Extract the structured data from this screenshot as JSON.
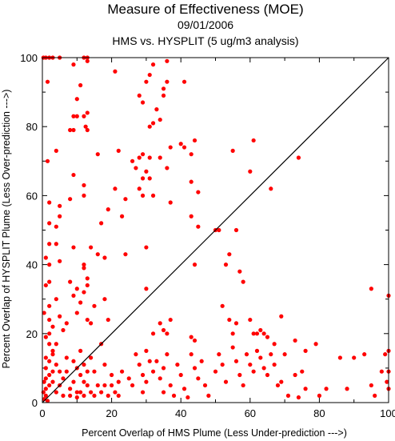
{
  "chart_data": {
    "type": "scatter",
    "title": "Measure of Effectiveness (MOE)",
    "date": "09/01/2006",
    "subtitle": "HMS vs. HYSPLIT  (5 ug/m3 analysis)",
    "xlabel": "Percent Overlap of HMS Plume (Less Under-prediction --->)",
    "ylabel": "Percent Overlap of HYSPLIT Plume (Less Over-prediction --->)",
    "xlim": [
      0,
      100
    ],
    "ylim": [
      0,
      100
    ],
    "x_ticks": [
      "0",
      "20",
      "40",
      "60",
      "80",
      "100"
    ],
    "y_ticks": [
      "0",
      "20",
      "40",
      "60",
      "80",
      "100"
    ],
    "reference_line": "1:1 diagonal",
    "marker_color": "#ff0000",
    "line_color": "#000000",
    "grid": false,
    "legend": "none",
    "points": [
      [
        0.3,
        100
      ],
      [
        1,
        100
      ],
      [
        2,
        100
      ],
      [
        3,
        100
      ],
      [
        5,
        100
      ],
      [
        12,
        100
      ],
      [
        13,
        100
      ],
      [
        1.5,
        93
      ],
      [
        9,
        98
      ],
      [
        11,
        92
      ],
      [
        13,
        99
      ],
      [
        21,
        96
      ],
      [
        30,
        93
      ],
      [
        31,
        95
      ],
      [
        32,
        98
      ],
      [
        35,
        91
      ],
      [
        36,
        99
      ],
      [
        41,
        93
      ],
      [
        10,
        88
      ],
      [
        12,
        83
      ],
      [
        12.5,
        80
      ],
      [
        13,
        84
      ],
      [
        13,
        79
      ],
      [
        9,
        79
      ],
      [
        10,
        83
      ],
      [
        28,
        89
      ],
      [
        29,
        87
      ],
      [
        31,
        80
      ],
      [
        32,
        81
      ],
      [
        34,
        82
      ],
      [
        35,
        89
      ],
      [
        33,
        85
      ],
      [
        36,
        93
      ],
      [
        1.5,
        70
      ],
      [
        4,
        73
      ],
      [
        8,
        79
      ],
      [
        9,
        83
      ],
      [
        16,
        72
      ],
      [
        22,
        73
      ],
      [
        26,
        70
      ],
      [
        27,
        68
      ],
      [
        28,
        71
      ],
      [
        29,
        72
      ],
      [
        29,
        65
      ],
      [
        31,
        71
      ],
      [
        30,
        67
      ],
      [
        34,
        71
      ],
      [
        37,
        74
      ],
      [
        36,
        68
      ],
      [
        43,
        72
      ],
      [
        44,
        76
      ],
      [
        45,
        61
      ],
      [
        40,
        75
      ],
      [
        41,
        74
      ],
      [
        2,
        58
      ],
      [
        2,
        52
      ],
      [
        5,
        57
      ],
      [
        5,
        54
      ],
      [
        8,
        59
      ],
      [
        9,
        66
      ],
      [
        12,
        60
      ],
      [
        12,
        63
      ],
      [
        17,
        52
      ],
      [
        19,
        56
      ],
      [
        21,
        62
      ],
      [
        23,
        54
      ],
      [
        24,
        59
      ],
      [
        28,
        62
      ],
      [
        29,
        60
      ],
      [
        31,
        65
      ],
      [
        32,
        60
      ],
      [
        37,
        58
      ],
      [
        43,
        64
      ],
      [
        43,
        54
      ],
      [
        45,
        51
      ],
      [
        50,
        50
      ],
      [
        51,
        50
      ],
      [
        55,
        73
      ],
      [
        60,
        67
      ],
      [
        61,
        76
      ],
      [
        66,
        62
      ],
      [
        74,
        71
      ],
      [
        1,
        42
      ],
      [
        1,
        34
      ],
      [
        2,
        46
      ],
      [
        2,
        40
      ],
      [
        2,
        35
      ],
      [
        4,
        51
      ],
      [
        4,
        46
      ],
      [
        5,
        41
      ],
      [
        8,
        35
      ],
      [
        9,
        45
      ],
      [
        10,
        33
      ],
      [
        12,
        39
      ],
      [
        12,
        40
      ],
      [
        13,
        36
      ],
      [
        13,
        34
      ],
      [
        14,
        45
      ],
      [
        16,
        43
      ],
      [
        18,
        42
      ],
      [
        24,
        43
      ],
      [
        30,
        45
      ],
      [
        44,
        40
      ],
      [
        53,
        40
      ],
      [
        54,
        43
      ],
      [
        56,
        50
      ],
      [
        0.5,
        26
      ],
      [
        1,
        19
      ],
      [
        1,
        13
      ],
      [
        2,
        28
      ],
      [
        2,
        24
      ],
      [
        2,
        20
      ],
      [
        2,
        17
      ],
      [
        3,
        22
      ],
      [
        3,
        15
      ],
      [
        4,
        17
      ],
      [
        4,
        30
      ],
      [
        5,
        25
      ],
      [
        6,
        21
      ],
      [
        7,
        23
      ],
      [
        9,
        31
      ],
      [
        10,
        26
      ],
      [
        11,
        29
      ],
      [
        12,
        32
      ],
      [
        13,
        24
      ],
      [
        14,
        23
      ],
      [
        15,
        28
      ],
      [
        17,
        17
      ],
      [
        18,
        30
      ],
      [
        19,
        24
      ],
      [
        30,
        33
      ],
      [
        32,
        20
      ],
      [
        34,
        23
      ],
      [
        35,
        21
      ],
      [
        36,
        20
      ],
      [
        37,
        24
      ],
      [
        43,
        19
      ],
      [
        44,
        18
      ],
      [
        52,
        28
      ],
      [
        54,
        24
      ],
      [
        55,
        20
      ],
      [
        56,
        23
      ],
      [
        57,
        38
      ],
      [
        58,
        35
      ],
      [
        60,
        24
      ],
      [
        61,
        20
      ],
      [
        62,
        20
      ],
      [
        63,
        21
      ],
      [
        64,
        20
      ],
      [
        65,
        19
      ],
      [
        67,
        17
      ],
      [
        69,
        25
      ],
      [
        73,
        18
      ],
      [
        76,
        15
      ],
      [
        79,
        17
      ],
      [
        95,
        33
      ],
      [
        100,
        31
      ],
      [
        0.3,
        3
      ],
      [
        0.5,
        6
      ],
      [
        0.5,
        1
      ],
      [
        1,
        10
      ],
      [
        1,
        7
      ],
      [
        1,
        4
      ],
      [
        1,
        2
      ],
      [
        1.5,
        0.5
      ],
      [
        2,
        12
      ],
      [
        2,
        8
      ],
      [
        2,
        5
      ],
      [
        3,
        14
      ],
      [
        3,
        9
      ],
      [
        3,
        6
      ],
      [
        4,
        11
      ],
      [
        4,
        3
      ],
      [
        5,
        9
      ],
      [
        5,
        5
      ],
      [
        6,
        7
      ],
      [
        6,
        2
      ],
      [
        7,
        13
      ],
      [
        7,
        9
      ],
      [
        8,
        4
      ],
      [
        8,
        2
      ],
      [
        9,
        12
      ],
      [
        9,
        6
      ],
      [
        10,
        10
      ],
      [
        10,
        3
      ],
      [
        10,
        1.5
      ],
      [
        11,
        15
      ],
      [
        11,
        8
      ],
      [
        11,
        3
      ],
      [
        12,
        11
      ],
      [
        12,
        6
      ],
      [
        12,
        2
      ],
      [
        13,
        9
      ],
      [
        13,
        5
      ],
      [
        14,
        13
      ],
      [
        14,
        3
      ],
      [
        15,
        9
      ],
      [
        15,
        2
      ],
      [
        16,
        5
      ],
      [
        17,
        3
      ],
      [
        18,
        11
      ],
      [
        18,
        5
      ],
      [
        19,
        2
      ],
      [
        20,
        8
      ],
      [
        20,
        5
      ],
      [
        21,
        3
      ],
      [
        22,
        2
      ],
      [
        22,
        6
      ],
      [
        23,
        9
      ],
      [
        25,
        7
      ],
      [
        26,
        5
      ],
      [
        27,
        14
      ],
      [
        28,
        11
      ],
      [
        29,
        8
      ],
      [
        29,
        3
      ],
      [
        30,
        15
      ],
      [
        30,
        6
      ],
      [
        31,
        12
      ],
      [
        32,
        9
      ],
      [
        33,
        12
      ],
      [
        34,
        7
      ],
      [
        35,
        10
      ],
      [
        35,
        3
      ],
      [
        36,
        14
      ],
      [
        37,
        5
      ],
      [
        38,
        2
      ],
      [
        39,
        11
      ],
      [
        40,
        8
      ],
      [
        41,
        4
      ],
      [
        42,
        1.5
      ],
      [
        43,
        14
      ],
      [
        44,
        10
      ],
      [
        45,
        7
      ],
      [
        46,
        12
      ],
      [
        47,
        5
      ],
      [
        48,
        2
      ],
      [
        50,
        9
      ],
      [
        51,
        14
      ],
      [
        52,
        11
      ],
      [
        53,
        6
      ],
      [
        55,
        16
      ],
      [
        56,
        12
      ],
      [
        57,
        8
      ],
      [
        58,
        5
      ],
      [
        59,
        14
      ],
      [
        60,
        11
      ],
      [
        61,
        9
      ],
      [
        62,
        15
      ],
      [
        63,
        13
      ],
      [
        64,
        10
      ],
      [
        65,
        8
      ],
      [
        66,
        14
      ],
      [
        67,
        11
      ],
      [
        68,
        5
      ],
      [
        69,
        6
      ],
      [
        70,
        14
      ],
      [
        71,
        2
      ],
      [
        73,
        8
      ],
      [
        74,
        1.5
      ],
      [
        75,
        9
      ],
      [
        76,
        4
      ],
      [
        80,
        2
      ],
      [
        82,
        4
      ],
      [
        86,
        13
      ],
      [
        88,
        4
      ],
      [
        90,
        13
      ],
      [
        93,
        14
      ],
      [
        95,
        5
      ],
      [
        96,
        2
      ],
      [
        98,
        9
      ],
      [
        99,
        14
      ],
      [
        99.5,
        6
      ],
      [
        100,
        15
      ],
      [
        100,
        9
      ],
      [
        100,
        4
      ]
    ]
  }
}
